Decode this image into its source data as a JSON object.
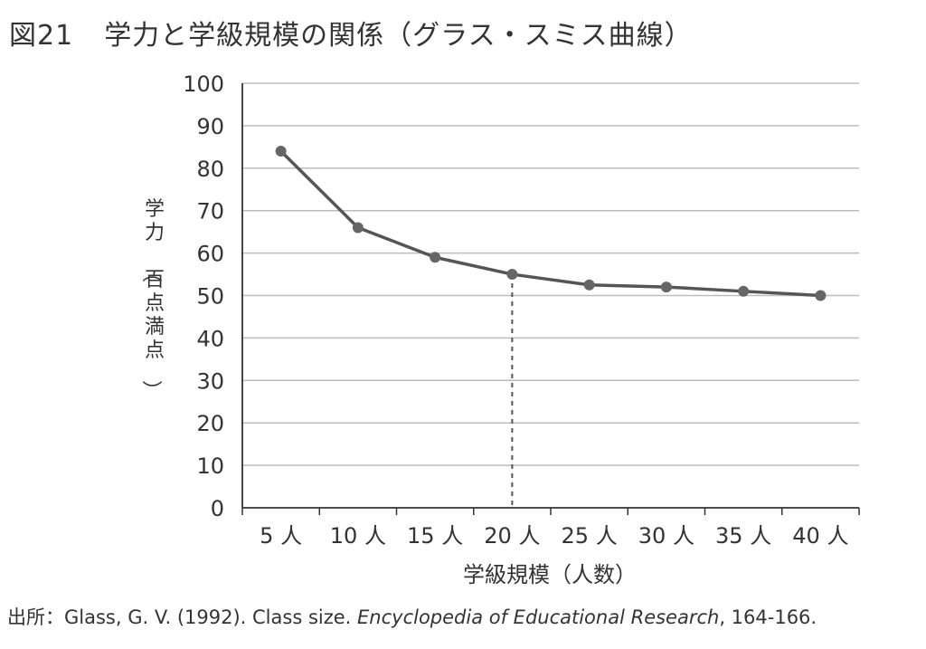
{
  "figure": {
    "number": "図21",
    "title": "学力と学級規模の関係（グラス・スミス曲線）"
  },
  "source": {
    "prefix": "出所：Glass, G. V. (1992). Class size. ",
    "journal": "Encyclopedia of Educational Research",
    "suffix": ", 164-166."
  },
  "chart_data": {
    "type": "line",
    "title": "学力と学級規模の関係（グラス・スミス曲線）",
    "xlabel": "学級規模（人数）",
    "ylabel": "学力（百点満点）",
    "categories": [
      "5 人",
      "10 人",
      "15 人",
      "20 人",
      "25 人",
      "30 人",
      "35 人",
      "40 人"
    ],
    "series": [
      {
        "values": [
          84,
          66,
          59,
          55,
          52.5,
          52,
          51,
          50
        ]
      }
    ],
    "ylim": [
      0,
      100
    ],
    "yticks": [
      0,
      10,
      20,
      30,
      40,
      50,
      60,
      70,
      80,
      90,
      100
    ],
    "grid": true,
    "highlight": {
      "category": "20 人",
      "value": 55,
      "style": "dashed vertical line"
    },
    "colors": {
      "line": "#555555",
      "marker": "#666666",
      "grid": "#bdbdbd",
      "axis": "#333333",
      "dashed": "#555555"
    }
  }
}
